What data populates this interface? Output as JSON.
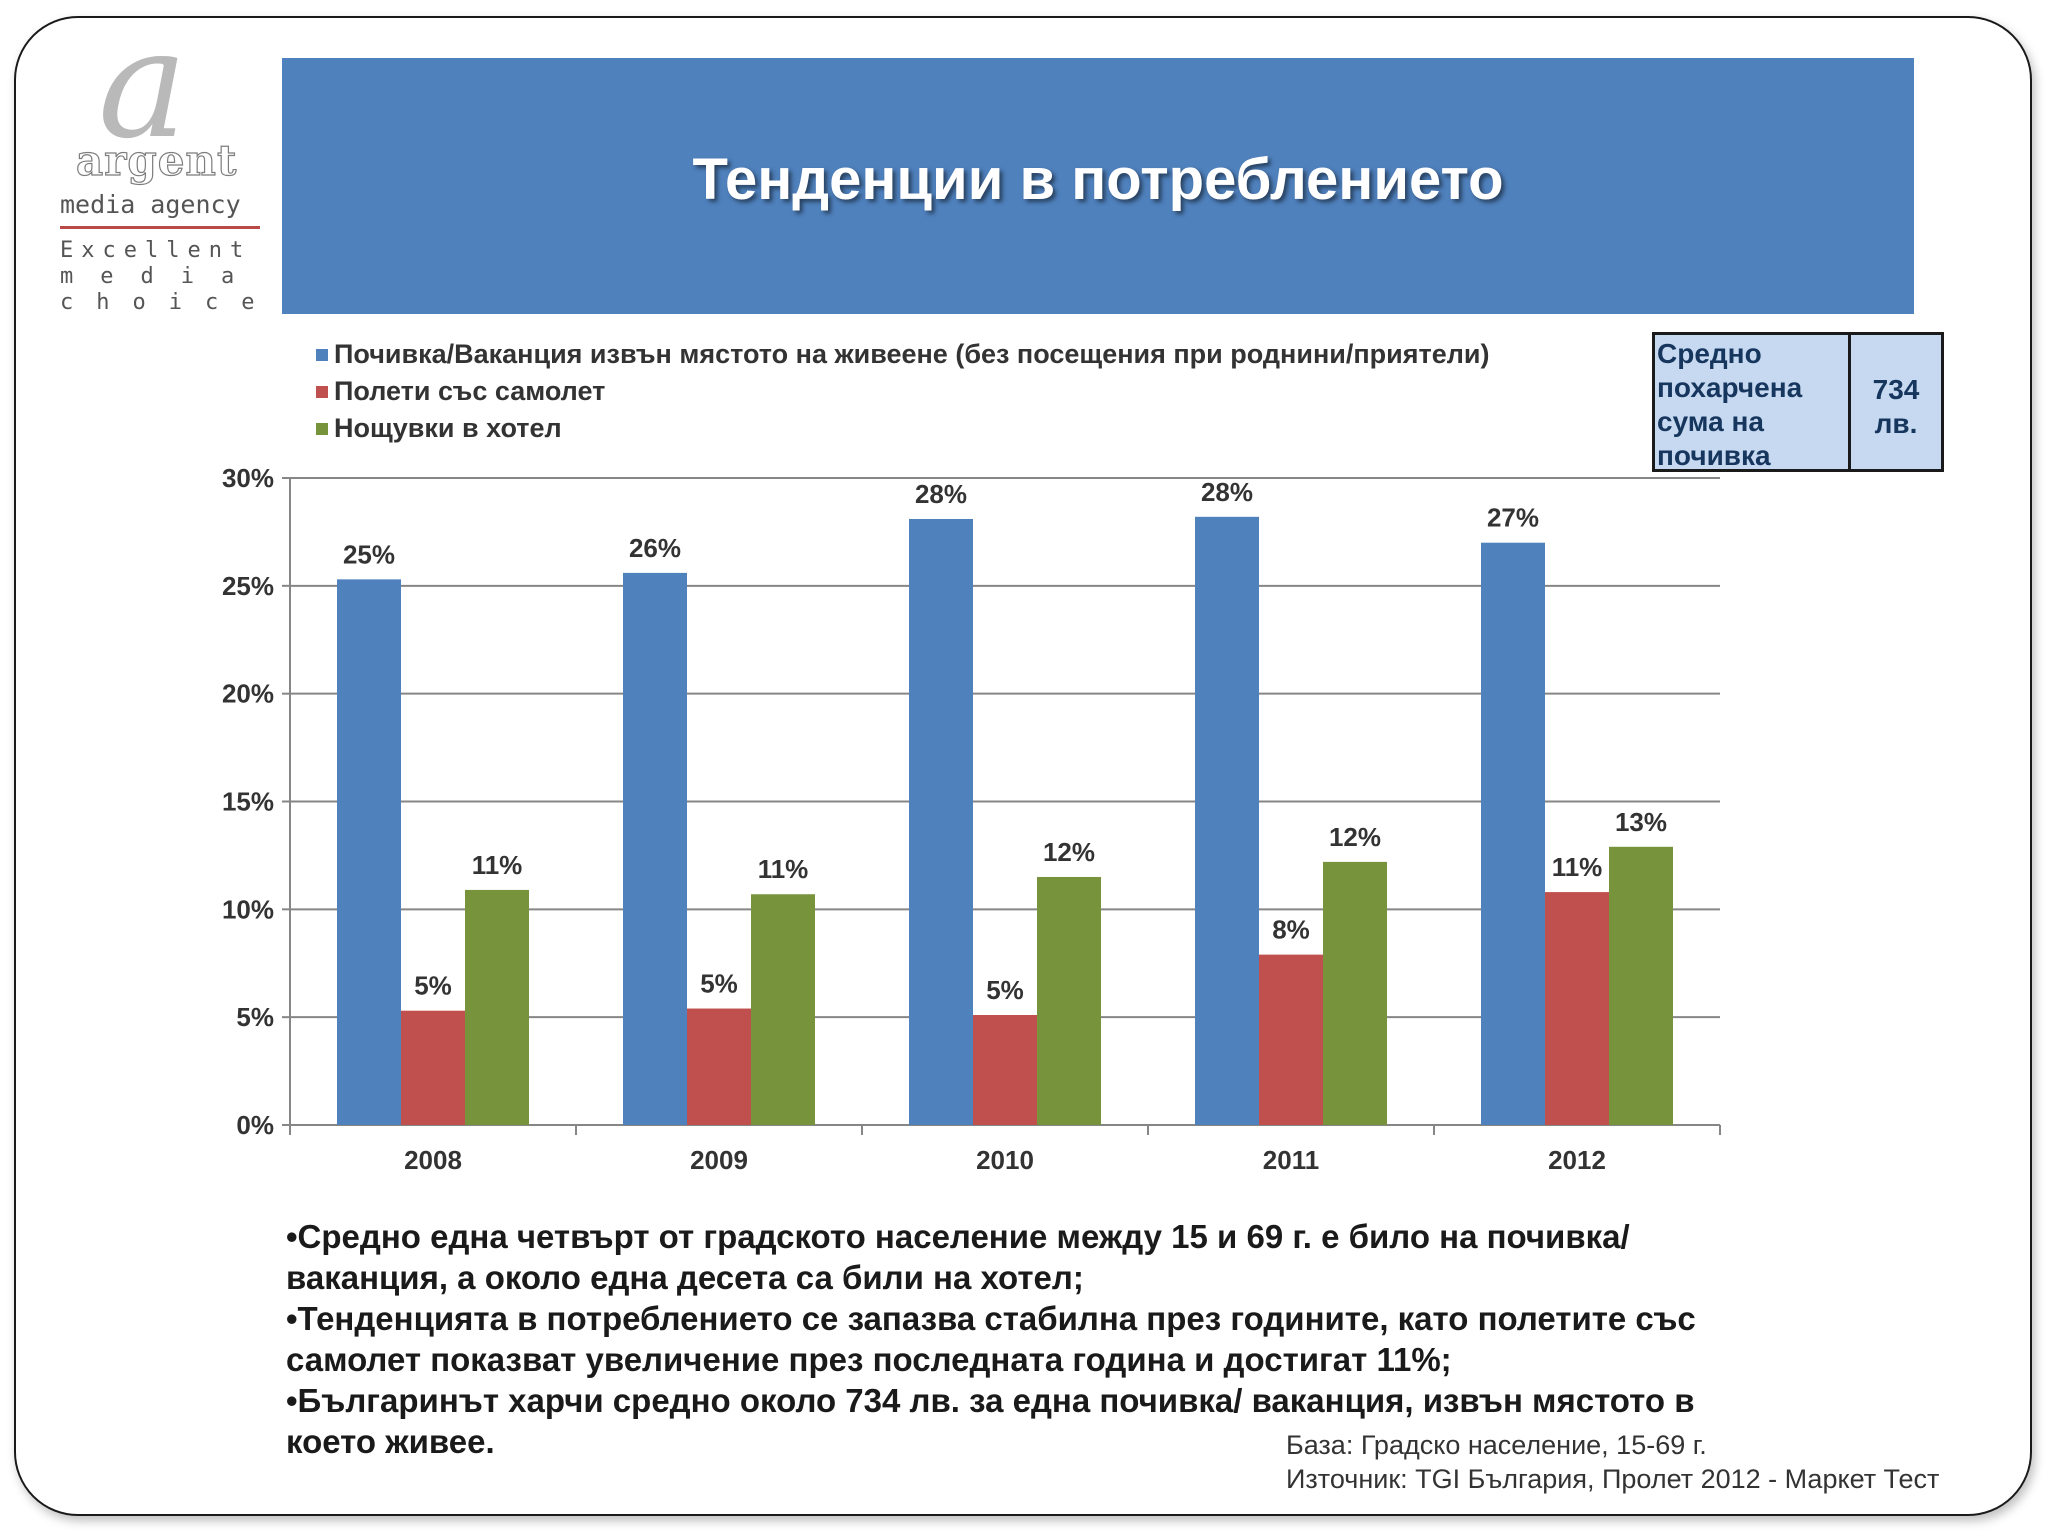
{
  "slide": {
    "title": "Тенденции в потреблението",
    "colors": {
      "banner": "#4f81bd",
      "box_fill": "#c6d9f1",
      "box_text": "#17365d"
    }
  },
  "logo": {
    "mark": "a",
    "word": "argent",
    "subtitle": "media agency",
    "tagline": [
      "Excellent",
      "media",
      "choice"
    ]
  },
  "spend_box": {
    "label_lines": [
      "Средно",
      "похарчена",
      "сума на",
      "почивка"
    ],
    "value_lines": [
      "734",
      "лв."
    ]
  },
  "chart_data": {
    "type": "bar",
    "categories": [
      "2008",
      "2009",
      "2010",
      "2011",
      "2012"
    ],
    "series": [
      {
        "name": "Почивка/Ваканция извън мястото на живеене (без посещения при роднини/приятели)",
        "color": "#4f81bd",
        "values": [
          25.3,
          25.6,
          28.1,
          28.2,
          27.0
        ],
        "labels": [
          "25%",
          "26%",
          "28%",
          "28%",
          "27%"
        ]
      },
      {
        "name": "Полети със самолет",
        "color": "#c0504d",
        "values": [
          5.3,
          5.4,
          5.1,
          7.9,
          10.8
        ],
        "labels": [
          "5%",
          "5%",
          "5%",
          "8%",
          "11%"
        ]
      },
      {
        "name": "Нощувки в хотел",
        "color": "#77933c",
        "values": [
          10.9,
          10.7,
          11.5,
          12.2,
          12.9
        ],
        "labels": [
          "11%",
          "11%",
          "12%",
          "12%",
          "13%"
        ]
      }
    ],
    "ylim": [
      0,
      30
    ],
    "yticks": [
      "0%",
      "5%",
      "10%",
      "15%",
      "20%",
      "25%",
      "30%"
    ],
    "gridlines": true,
    "legend_position": "top-left"
  },
  "notes": [
    "•Средно една четвърт от  градското население между 15 и 69 г. е било на почивка/ваканция, а около една десета са били на хотел;",
    "•Тенденцията в потреблението се запазва стабилна през годините, като полетите със самолет показват увеличение през последната година и достигат 11%;",
    "•Българинът харчи средно около 734 лв. за една почивка/ ваканция, извън мястото в което живее."
  ],
  "source": {
    "base": "База: Градско население, 15-69 г.",
    "source": "Източник: TGI България, Пролет 2012 - Маркет Тест"
  }
}
